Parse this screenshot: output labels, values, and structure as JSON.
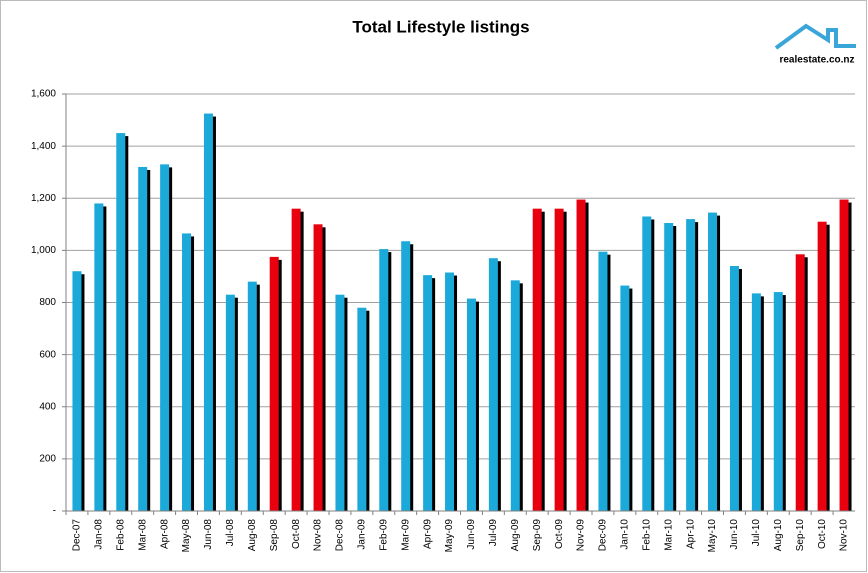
{
  "logo": "realestate.co.nz",
  "chart_data": {
    "type": "bar",
    "title": "Total Lifestyle listings",
    "categories": [
      "Dec-07",
      "Jan-08",
      "Feb-08",
      "Mar-08",
      "Apr-08",
      "May-08",
      "Jun-08",
      "Jul-08",
      "Aug-08",
      "Sep-08",
      "Oct-08",
      "Nov-08",
      "Dec-08",
      "Jan-09",
      "Feb-09",
      "Mar-09",
      "Apr-09",
      "May-09",
      "Jun-09",
      "Jul-09",
      "Aug-09",
      "Sep-09",
      "Oct-09",
      "Nov-09",
      "Dec-09",
      "Jan-10",
      "Feb-10",
      "Mar-10",
      "Apr-10",
      "May-10",
      "Jun-10",
      "Jul-10",
      "Aug-10",
      "Sep-10",
      "Oct-10",
      "Nov-10"
    ],
    "values": [
      920,
      1180,
      1450,
      1320,
      1330,
      1065,
      1525,
      830,
      880,
      975,
      1160,
      1100,
      830,
      780,
      1005,
      1035,
      905,
      915,
      815,
      970,
      885,
      1160,
      1160,
      1195,
      995,
      865,
      1130,
      1105,
      1120,
      1145,
      940,
      835,
      840,
      985,
      1110,
      1195
    ],
    "colors": [
      "#1aa9d8",
      "#1aa9d8",
      "#1aa9d8",
      "#1aa9d8",
      "#1aa9d8",
      "#1aa9d8",
      "#1aa9d8",
      "#1aa9d8",
      "#1aa9d8",
      "#e8000f",
      "#e8000f",
      "#e8000f",
      "#1aa9d8",
      "#1aa9d8",
      "#1aa9d8",
      "#1aa9d8",
      "#1aa9d8",
      "#1aa9d8",
      "#1aa9d8",
      "#1aa9d8",
      "#1aa9d8",
      "#e8000f",
      "#e8000f",
      "#e8000f",
      "#1aa9d8",
      "#1aa9d8",
      "#1aa9d8",
      "#1aa9d8",
      "#1aa9d8",
      "#1aa9d8",
      "#1aa9d8",
      "#1aa9d8",
      "#1aa9d8",
      "#e8000f",
      "#e8000f",
      "#e8000f"
    ],
    "ylim": [
      0,
      1600
    ],
    "yticks": [
      {
        "value": 0,
        "label": "-"
      },
      200,
      400,
      600,
      800,
      {
        "value": 1000,
        "label": "1,000"
      },
      {
        "value": 1200,
        "label": "1,200"
      },
      {
        "value": 1400,
        "label": "1,400"
      },
      {
        "value": 1600,
        "label": "1,600"
      }
    ],
    "grid": true
  }
}
